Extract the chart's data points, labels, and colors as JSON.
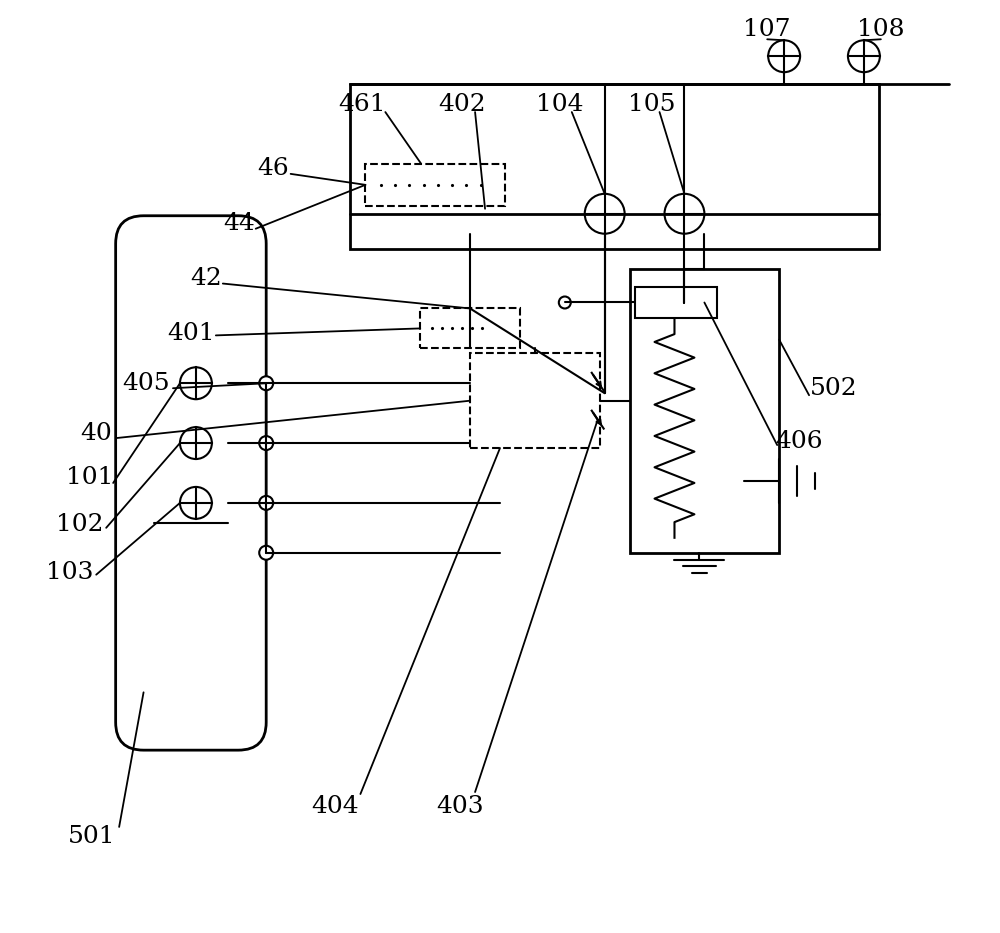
{
  "bg_color": "#ffffff",
  "fig_width": 10.0,
  "fig_height": 9.33,
  "lw_main": 2.0,
  "lw_thin": 1.5,
  "lw_label": 1.3,
  "label_fontsize": 18
}
